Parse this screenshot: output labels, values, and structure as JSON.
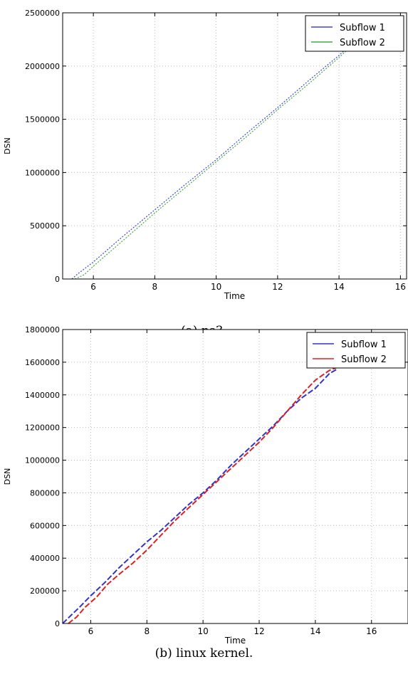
{
  "captions": [
    "(a) ns3.",
    "(b) linux kernel."
  ],
  "chart_data": [
    {
      "type": "line",
      "title": "",
      "xlabel": "Time",
      "ylabel": "DSN",
      "xlim": [
        5,
        16.2
      ],
      "ylim": [
        0,
        2500000
      ],
      "xticks": [
        6,
        8,
        10,
        12,
        14,
        16
      ],
      "yticks": [
        0,
        500000,
        1000000,
        1500000,
        2000000,
        2500000
      ],
      "grid": true,
      "legend_position": "top-right",
      "series": [
        {
          "name": "Subflow 1",
          "color": "#4444dd",
          "x": [
            5.3,
            5.5,
            6,
            7,
            8,
            9,
            10,
            11,
            12,
            13,
            14,
            14.3
          ],
          "values": [
            0,
            50000,
            160000,
            410000,
            650000,
            890000,
            1120000,
            1370000,
            1610000,
            1860000,
            2100000,
            2180000
          ]
        },
        {
          "name": "Subflow 2",
          "color": "#44aa44",
          "x": [
            5.4,
            5.7,
            6,
            7,
            8,
            9,
            10,
            11,
            12,
            13,
            14,
            14.3
          ],
          "values": [
            0,
            40000,
            120000,
            370000,
            620000,
            860000,
            1100000,
            1340000,
            1590000,
            1830000,
            2080000,
            2160000
          ]
        }
      ]
    },
    {
      "type": "line",
      "title": "",
      "xlabel": "Time",
      "ylabel": "DSN",
      "xlim": [
        5,
        17.3
      ],
      "ylim": [
        0,
        1800000
      ],
      "xticks": [
        6,
        8,
        10,
        12,
        14,
        16
      ],
      "yticks": [
        0,
        200000,
        400000,
        600000,
        800000,
        1000000,
        1200000,
        1400000,
        1600000,
        1800000
      ],
      "grid": true,
      "legend_position": "top-right",
      "series": [
        {
          "name": "Subflow 1",
          "color": "#3333cc",
          "x": [
            5,
            5.3,
            5.6,
            6,
            6.5,
            7,
            7.5,
            8,
            8.5,
            9,
            9.5,
            10,
            10.5,
            11,
            11.5,
            12,
            12.5,
            13,
            13.5,
            14,
            14.5,
            14.8
          ],
          "values": [
            0,
            50000,
            100000,
            170000,
            250000,
            340000,
            420000,
            500000,
            570000,
            650000,
            730000,
            800000,
            880000,
            970000,
            1050000,
            1130000,
            1210000,
            1300000,
            1380000,
            1440000,
            1530000,
            1560000
          ]
        },
        {
          "name": "Subflow 2",
          "color": "#dd2222",
          "x": [
            5.2,
            5.5,
            5.8,
            6.2,
            6.6,
            7,
            7.5,
            8,
            8.5,
            9,
            9.5,
            10,
            10.5,
            11,
            11.5,
            12,
            12.5,
            13,
            13.5,
            14,
            14.5,
            14.8
          ],
          "values": [
            0,
            40000,
            100000,
            160000,
            240000,
            300000,
            370000,
            450000,
            540000,
            630000,
            710000,
            790000,
            870000,
            950000,
            1030000,
            1110000,
            1200000,
            1300000,
            1400000,
            1490000,
            1550000,
            1570000
          ]
        }
      ]
    }
  ]
}
